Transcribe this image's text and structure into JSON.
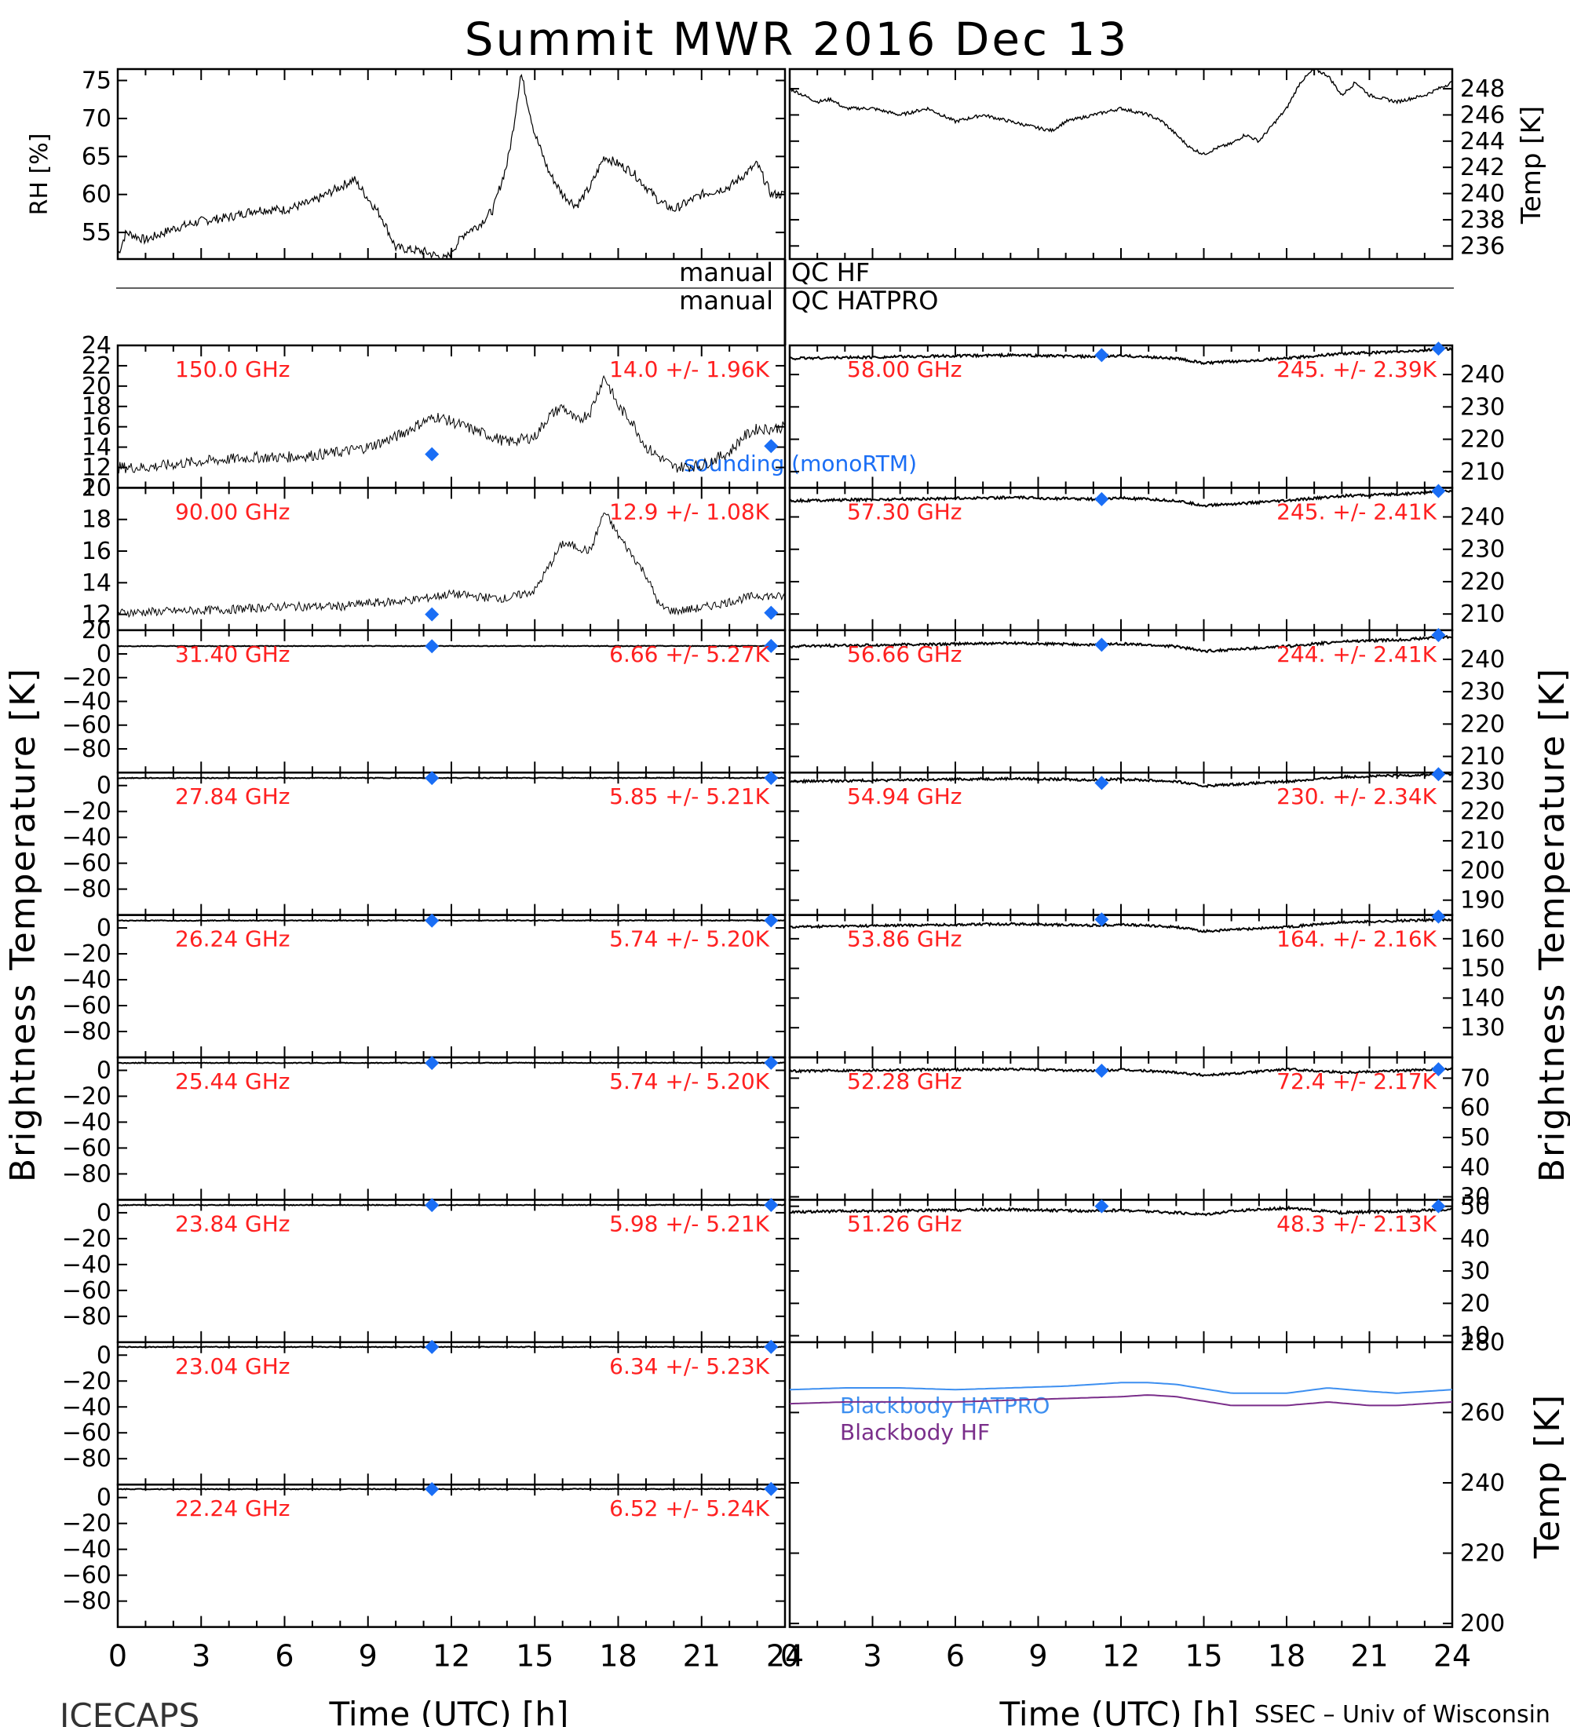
{
  "header": {
    "title": "Summit MWR 2016 Dec 13",
    "footer_left": "ICECAPS",
    "footer_right": "SSEC – Univ of Wisconsin"
  },
  "axes_labels": {
    "rh": "RH [%]",
    "temp": "Temp [K]",
    "tb_left": "Brightness Temperature [K]",
    "tb_right": "Brightness Temperature [K]",
    "bb_temp": "Temp [K]",
    "time_left": "Time (UTC) [h]",
    "time_right": "Time (UTC) [h]"
  },
  "qc": {
    "hf_left": "manual",
    "hf_right": "QC HF",
    "hatpro_left": "manual",
    "hatpro_right": "QC HATPRO"
  },
  "legend": {
    "sounding": "sounding (monoRTM)",
    "bb_hatpro": "Blackbody HATPRO",
    "bb_hf": "Blackbody HF"
  },
  "colors": {
    "annotation": "#ff2020",
    "sounding": "#1a6ef5",
    "bb_hatpro": "#3d8ff0",
    "bb_hf": "#7a2e8a",
    "trace": "#000000"
  },
  "chart_data": [
    {
      "id": "rh",
      "type": "line",
      "ylabel": "RH [%]",
      "xlim": [
        0,
        24
      ],
      "ylim": [
        51.5,
        76.5
      ],
      "yticks": [
        55,
        60,
        65,
        70,
        75
      ],
      "x": [
        0,
        0.3,
        1,
        2,
        3,
        4,
        5,
        6,
        7,
        8,
        8.5,
        9,
        9.5,
        10,
        11,
        11.8,
        12.5,
        13,
        13.5,
        14,
        14.2,
        14.5,
        15,
        15.5,
        16,
        16.5,
        17,
        17.5,
        18,
        18.5,
        19,
        19.5,
        20,
        21,
        22,
        23,
        23.5,
        24
      ],
      "y": [
        52,
        55,
        54,
        55.5,
        56.5,
        57,
        58,
        58,
        59,
        61,
        62,
        59.5,
        57,
        53,
        52.5,
        51.5,
        55,
        56,
        58,
        64,
        68,
        76,
        68,
        63,
        60,
        58.5,
        61,
        65,
        64,
        63,
        61,
        59,
        58,
        60,
        61,
        64,
        60,
        60
      ]
    },
    {
      "id": "temp",
      "type": "line",
      "ylabel": "Temp [K]",
      "xlim": [
        0,
        24
      ],
      "ylim": [
        235,
        249.5
      ],
      "yticks": [
        236,
        238,
        240,
        242,
        244,
        246,
        248
      ],
      "x": [
        0,
        0.5,
        1,
        1.5,
        2,
        3,
        4,
        5,
        6,
        7,
        8,
        9,
        9.5,
        10,
        11,
        12,
        13,
        13.5,
        14,
        14.5,
        15,
        15.5,
        16,
        16.5,
        17,
        18,
        18.5,
        19,
        19.5,
        20,
        20.5,
        21,
        22,
        23,
        24
      ],
      "y": [
        248,
        247.5,
        247,
        247.2,
        246.5,
        246.5,
        246,
        246.5,
        245.5,
        246,
        245.5,
        245,
        244.8,
        245.5,
        246,
        246.5,
        246,
        245.5,
        244.5,
        243.5,
        243,
        243.5,
        243.8,
        244.5,
        244,
        246.5,
        248.5,
        249.5,
        249,
        247.5,
        248.5,
        247.5,
        247,
        247.5,
        248.5
      ]
    },
    {
      "id": "ch_150",
      "type": "line",
      "label": "150.0 GHz",
      "stats": "14.0 +/-  1.96K",
      "side": "left",
      "ylim": [
        10,
        24
      ],
      "yticks": [
        10,
        12,
        14,
        16,
        18,
        20,
        22,
        24
      ],
      "x": [
        0,
        1,
        2,
        3,
        4,
        5,
        6,
        7,
        8,
        9,
        10,
        11,
        11.5,
        12,
        12.5,
        13,
        14,
        15,
        15.5,
        16,
        16.5,
        17,
        17.5,
        18,
        18.5,
        19,
        20,
        21,
        22,
        22.5,
        23,
        23.5,
        24
      ],
      "y": [
        12,
        12,
        12.3,
        12.6,
        12.8,
        13,
        13,
        13.2,
        13.5,
        14,
        15,
        16.5,
        17,
        16.5,
        16,
        15.5,
        14.5,
        15,
        17,
        18,
        16.5,
        17.5,
        21,
        18,
        16.5,
        14,
        12,
        12.2,
        13.5,
        15,
        15.8,
        15.8,
        16
      ],
      "sounding": [
        [
          11.3,
          13.3
        ],
        [
          23.5,
          14.1
        ]
      ]
    },
    {
      "id": "ch_90",
      "type": "line",
      "label": "90.00 GHz",
      "stats": "12.9 +/-  1.08K",
      "side": "left",
      "ylim": [
        11,
        20
      ],
      "yticks": [
        12,
        14,
        16,
        18,
        20
      ],
      "x": [
        0,
        2,
        4,
        6,
        8,
        9,
        10,
        11,
        12,
        13,
        14,
        15,
        15.5,
        16,
        17,
        17.5,
        18,
        19,
        19.5,
        20,
        21,
        22,
        23,
        24
      ],
      "y": [
        12.1,
        12.2,
        12.3,
        12.5,
        12.5,
        12.7,
        12.8,
        13,
        13.3,
        13.1,
        13,
        13.5,
        15,
        16.5,
        16,
        18.5,
        17,
        14.5,
        12.5,
        12.2,
        12.4,
        12.8,
        13.2,
        13.1
      ],
      "sounding": [
        [
          11.3,
          12.0
        ],
        [
          23.5,
          12.1
        ]
      ]
    },
    {
      "id": "ch_31_40",
      "type": "line",
      "label": "31.40 GHz",
      "stats": "6.66 +/- 5.27K",
      "side": "left",
      "ylim": [
        -100,
        20
      ],
      "yticks": [
        -80,
        -60,
        -40,
        -20,
        0,
        20
      ],
      "x": [
        0,
        24
      ],
      "y": [
        6.6,
        6.7
      ],
      "sounding": [
        [
          11.3,
          6.5
        ],
        [
          23.5,
          6.7
        ]
      ]
    },
    {
      "id": "ch_27_84",
      "type": "line",
      "label": "27.84 GHz",
      "stats": "5.85 +/- 5.21K",
      "side": "left",
      "ylim": [
        -100,
        10
      ],
      "yticks": [
        -80,
        -60,
        -40,
        -20,
        0
      ],
      "x": [
        0,
        24
      ],
      "y": [
        5.8,
        5.9
      ],
      "sounding": [
        [
          11.3,
          5.8
        ],
        [
          23.5,
          5.9
        ]
      ]
    },
    {
      "id": "ch_26_24",
      "type": "line",
      "label": "26.24 GHz",
      "stats": "5.74 +/- 5.20K",
      "side": "left",
      "ylim": [
        -100,
        10
      ],
      "yticks": [
        -80,
        -60,
        -40,
        -20,
        0
      ],
      "x": [
        0,
        24
      ],
      "y": [
        5.7,
        5.8
      ],
      "sounding": [
        [
          11.3,
          5.7
        ],
        [
          23.5,
          5.8
        ]
      ]
    },
    {
      "id": "ch_25_44",
      "type": "line",
      "label": "25.44 GHz",
      "stats": "5.74 +/- 5.20K",
      "side": "left",
      "ylim": [
        -100,
        10
      ],
      "yticks": [
        -80,
        -60,
        -40,
        -20,
        0
      ],
      "x": [
        0,
        24
      ],
      "y": [
        5.7,
        5.8
      ],
      "sounding": [
        [
          11.3,
          5.7
        ],
        [
          23.5,
          5.8
        ]
      ]
    },
    {
      "id": "ch_23_84",
      "type": "line",
      "label": "23.84 GHz",
      "stats": "5.98 +/- 5.21K",
      "side": "left",
      "ylim": [
        -100,
        10
      ],
      "yticks": [
        -80,
        -60,
        -40,
        -20,
        0
      ],
      "x": [
        0,
        24
      ],
      "y": [
        5.9,
        6.0
      ],
      "sounding": [
        [
          11.3,
          5.9
        ],
        [
          23.5,
          6.0
        ]
      ]
    },
    {
      "id": "ch_23_04",
      "type": "line",
      "label": "23.04 GHz",
      "stats": "6.34 +/- 5.23K",
      "side": "left",
      "ylim": [
        -100,
        10
      ],
      "yticks": [
        -80,
        -60,
        -40,
        -20,
        0
      ],
      "x": [
        0,
        24
      ],
      "y": [
        6.3,
        6.4
      ],
      "sounding": [
        [
          11.3,
          6.3
        ],
        [
          23.5,
          6.4
        ]
      ]
    },
    {
      "id": "ch_22_24",
      "type": "line",
      "label": "22.24 GHz",
      "stats": "6.52 +/- 5.24K",
      "side": "left",
      "ylim": [
        -100,
        10
      ],
      "yticks": [
        -80,
        -60,
        -40,
        -20,
        0
      ],
      "x": [
        0,
        24
      ],
      "y": [
        6.5,
        6.6
      ],
      "sounding": [
        [
          11.3,
          6.5
        ],
        [
          23.5,
          6.6
        ]
      ]
    },
    {
      "id": "ch_58_00",
      "type": "line",
      "label": "58.00 GHz",
      "stats": "245. +/- 2.39K",
      "side": "right",
      "ylim": [
        205,
        249
      ],
      "yticks": [
        210,
        220,
        230,
        240
      ],
      "x": [
        0,
        4,
        8,
        11,
        12,
        14,
        15,
        16,
        18,
        20,
        22,
        24
      ],
      "y": [
        245,
        245.5,
        246,
        245.5,
        245.8,
        245,
        243.5,
        244,
        245,
        246.5,
        247,
        248
      ],
      "sounding": [
        [
          11.3,
          246
        ],
        [
          23.5,
          248
        ]
      ]
    },
    {
      "id": "ch_57_30",
      "type": "line",
      "label": "57.30 GHz",
      "stats": "245. +/- 2.41K",
      "side": "right",
      "ylim": [
        205,
        249
      ],
      "yticks": [
        210,
        220,
        230,
        240
      ],
      "x": [
        0,
        4,
        8,
        11,
        12,
        14,
        15,
        16,
        18,
        20,
        22,
        24
      ],
      "y": [
        245,
        245.5,
        246,
        245.5,
        245.8,
        245,
        243.5,
        244,
        245,
        246.5,
        247,
        248
      ],
      "sounding": [
        [
          11.3,
          245.5
        ],
        [
          23.5,
          248
        ]
      ]
    },
    {
      "id": "ch_56_66",
      "type": "line",
      "label": "56.66 GHz",
      "stats": "244. +/- 2.41K",
      "side": "right",
      "ylim": [
        205,
        249
      ],
      "yticks": [
        210,
        220,
        230,
        240
      ],
      "x": [
        0,
        4,
        8,
        11,
        12,
        14,
        15,
        16,
        18,
        20,
        22,
        24
      ],
      "y": [
        244,
        244.5,
        245,
        244.5,
        244.8,
        244,
        242.5,
        243,
        244,
        245.5,
        246,
        247
      ],
      "sounding": [
        [
          11.3,
          244.5
        ],
        [
          23.5,
          247.5
        ]
      ]
    },
    {
      "id": "ch_54_94",
      "type": "line",
      "label": "54.94 GHz",
      "stats": "230. +/- 2.34K",
      "side": "right",
      "ylim": [
        185,
        233
      ],
      "yticks": [
        190,
        200,
        210,
        220,
        230
      ],
      "x": [
        0,
        4,
        8,
        11,
        12,
        14,
        15,
        16,
        18,
        20,
        22,
        24
      ],
      "y": [
        230,
        230.5,
        231,
        230.5,
        230.8,
        230,
        228.5,
        229,
        230,
        231.5,
        232,
        232.5
      ],
      "sounding": [
        [
          11.3,
          229.5
        ],
        [
          23.5,
          232.5
        ]
      ]
    },
    {
      "id": "ch_53_86",
      "type": "line",
      "label": "53.86 GHz",
      "stats": "164. +/- 2.16K",
      "side": "right",
      "ylim": [
        120,
        168
      ],
      "yticks": [
        130,
        140,
        150,
        160
      ],
      "x": [
        0,
        4,
        8,
        11,
        12,
        14,
        15,
        16,
        18,
        20,
        22,
        24
      ],
      "y": [
        164,
        164.5,
        165,
        164.5,
        164.8,
        164,
        162.5,
        163,
        164,
        165.5,
        166,
        166.5
      ],
      "sounding": [
        [
          11.3,
          166.5
        ],
        [
          23.5,
          167.5
        ]
      ]
    },
    {
      "id": "ch_52_28",
      "type": "line",
      "label": "52.28 GHz",
      "stats": "72.4 +/- 2.17K",
      "side": "right",
      "ylim": [
        29,
        77
      ],
      "yticks": [
        30,
        40,
        50,
        60,
        70
      ],
      "x": [
        0,
        4,
        8,
        11,
        12,
        14,
        15,
        16,
        18,
        20,
        22,
        24
      ],
      "y": [
        72.4,
        72.8,
        73,
        72.5,
        72.8,
        72,
        71,
        71.5,
        73,
        72,
        72.5,
        73
      ],
      "sounding": [
        [
          11.3,
          72.5
        ],
        [
          23.5,
          73
        ]
      ]
    },
    {
      "id": "ch_51_26",
      "type": "line",
      "label": "51.26 GHz",
      "stats": "48.3 +/- 2.13K",
      "side": "right",
      "ylim": [
        8,
        52
      ],
      "yticks": [
        10,
        20,
        30,
        40,
        50
      ],
      "x": [
        0,
        4,
        8,
        11,
        12,
        14,
        15,
        16,
        18,
        20,
        22,
        24
      ],
      "y": [
        48.3,
        48.6,
        49,
        48.5,
        48.8,
        48,
        47.5,
        48.5,
        49.5,
        48,
        48.5,
        49
      ],
      "sounding": [
        [
          11.3,
          50
        ],
        [
          23.5,
          50
        ]
      ]
    },
    {
      "id": "blackbody",
      "type": "line",
      "ylabel": "Temp [K]",
      "xlim": [
        0,
        24
      ],
      "ylim": [
        199,
        280
      ],
      "yticks": [
        200,
        220,
        240,
        260,
        280
      ],
      "x": [
        0,
        2,
        4,
        6,
        8,
        10,
        12,
        13,
        14,
        16,
        18,
        19.5,
        21,
        22,
        24
      ],
      "series": [
        {
          "name": "Blackbody HATPRO",
          "values": [
            266.5,
            267,
            267,
            266.5,
            267,
            267.5,
            268.5,
            268.5,
            268,
            265.5,
            265.5,
            267,
            266,
            265.5,
            266.5
          ]
        },
        {
          "name": "Blackbody HF",
          "values": [
            262.5,
            263,
            263,
            263,
            263.5,
            264,
            264.5,
            265,
            264.5,
            262,
            262,
            263,
            262,
            262,
            263
          ]
        }
      ]
    }
  ]
}
